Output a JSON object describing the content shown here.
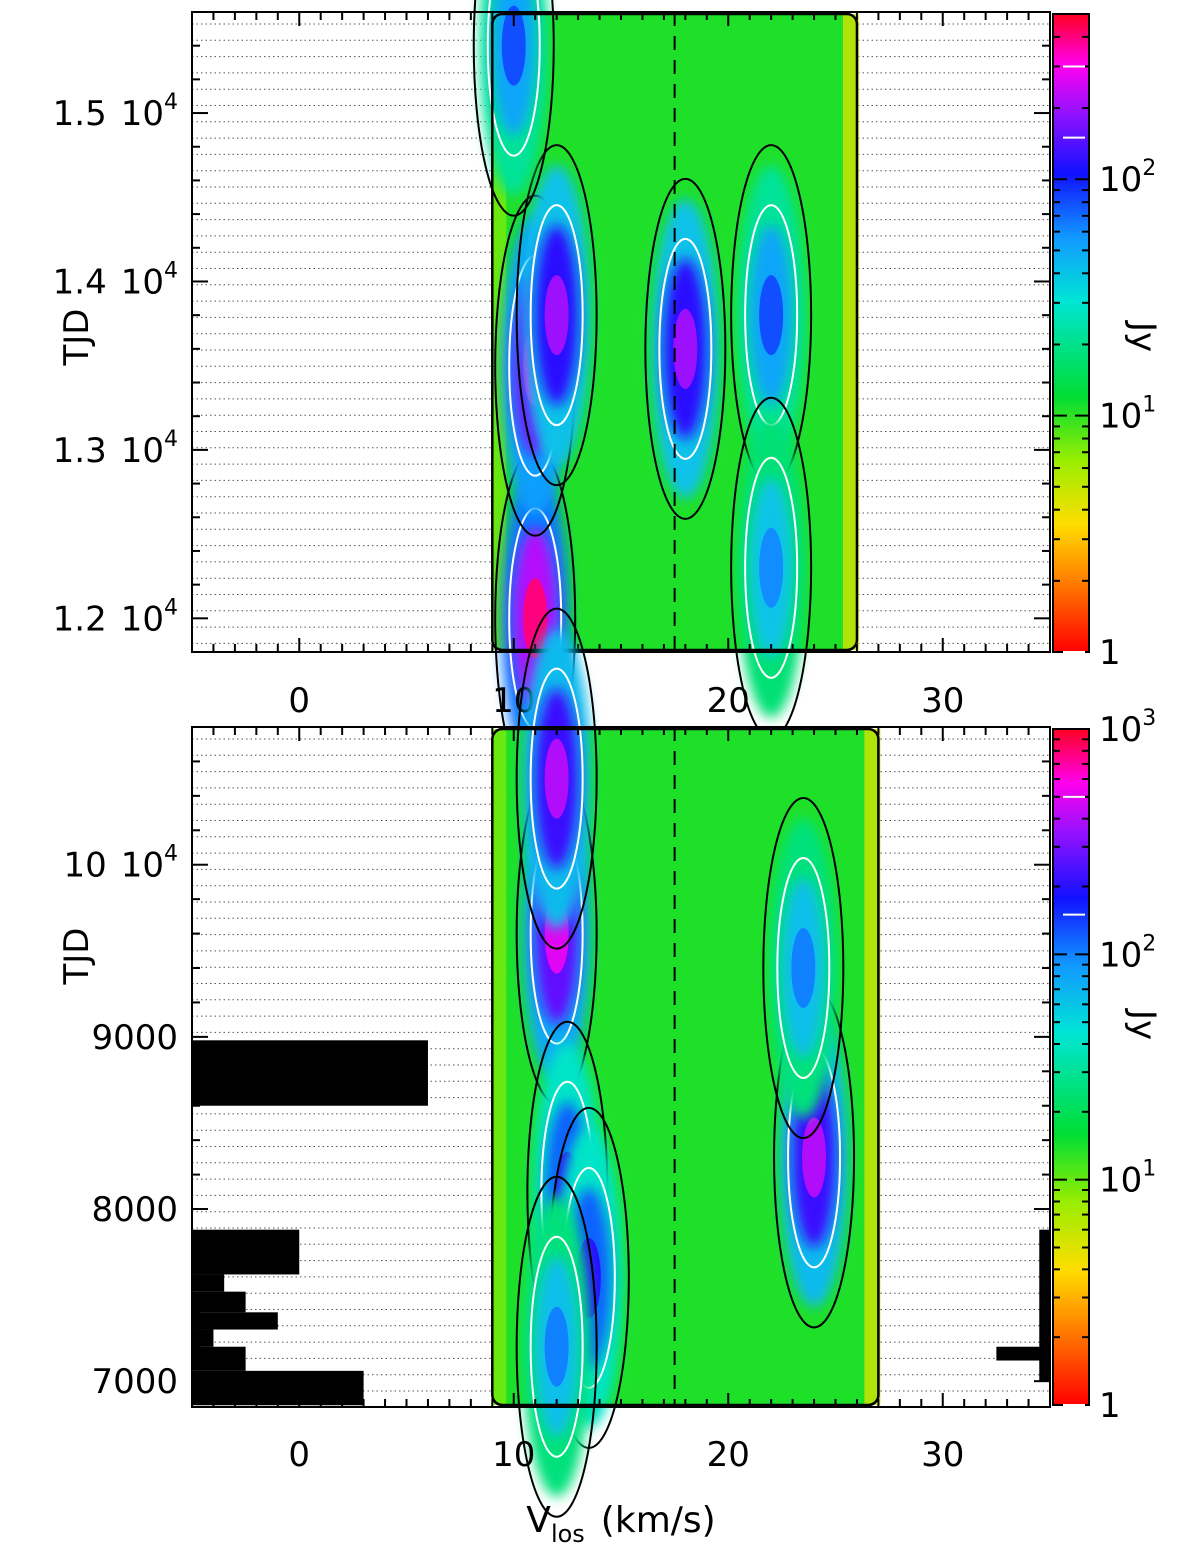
{
  "chart_data": [
    {
      "type": "heatmap",
      "panel": "top",
      "xlabel": "",
      "ylabel": "TJD",
      "xlim": [
        -5,
        35
      ],
      "ylim": [
        11800,
        15600
      ],
      "x_ticks": [
        0,
        10,
        20,
        30
      ],
      "y_ticks": [
        {
          "value": 12000,
          "mant": "1.2",
          "exp": "4"
        },
        {
          "value": 13000,
          "mant": "1.3",
          "exp": "4"
        },
        {
          "value": 14000,
          "mant": "1.4",
          "exp": "4"
        },
        {
          "value": 15000,
          "mant": "1.5",
          "exp": "4"
        }
      ],
      "colorbar": {
        "label": "Jy",
        "scale": "log",
        "range": [
          1,
          500
        ],
        "ticks": [
          {
            "value": 1,
            "text": "1",
            "exp": ""
          },
          {
            "value": 10,
            "text": "10",
            "exp": "1"
          },
          {
            "value": 100,
            "text": "10",
            "exp": "2"
          }
        ],
        "white_marks": [
          1,
          150,
          300
        ]
      },
      "emission_region": {
        "v_min": 9,
        "v_max": 26
      },
      "features": [
        {
          "v": 11,
          "t": 12000,
          "flux": 400
        },
        {
          "v": 11,
          "t": 13500,
          "flux": 300
        },
        {
          "v": 12,
          "t": 13800,
          "flux": 200
        },
        {
          "v": 18,
          "t": 13600,
          "flux": 200
        },
        {
          "v": 22,
          "t": 13800,
          "flux": 80
        },
        {
          "v": 22,
          "t": 12300,
          "flux": 60
        },
        {
          "v": 10,
          "t": 15400,
          "flux": 80
        }
      ],
      "reference_line_v": 17.5
    },
    {
      "type": "heatmap",
      "panel": "bottom",
      "xlabel": "V",
      "xlabel_sub": "los",
      "xlabel_unit": "(km/s)",
      "ylabel": "TJD",
      "xlim": [
        -5,
        35
      ],
      "ylim": [
        6850,
        10800
      ],
      "x_ticks": [
        0,
        10,
        20,
        30
      ],
      "y_ticks": [
        {
          "value": 7000,
          "mant": "7000",
          "exp": ""
        },
        {
          "value": 8000,
          "mant": "8000",
          "exp": ""
        },
        {
          "value": 9000,
          "mant": "9000",
          "exp": ""
        },
        {
          "value": 10000,
          "mant": "10",
          "exp": "4"
        }
      ],
      "colorbar": {
        "label": "Jy",
        "scale": "log",
        "range": [
          1,
          1000
        ],
        "ticks": [
          {
            "value": 1,
            "text": "1",
            "exp": ""
          },
          {
            "value": 10,
            "text": "10",
            "exp": "1"
          },
          {
            "value": 100,
            "text": "10",
            "exp": "2"
          },
          {
            "value": 1000,
            "text": "10",
            "exp": "3"
          }
        ],
        "white_marks": [
          1,
          150,
          500
        ]
      },
      "emission_region": {
        "v_min": 9,
        "v_max": 27
      },
      "features": [
        {
          "v": 12,
          "t": 9600,
          "flux": 500
        },
        {
          "v": 12,
          "t": 10500,
          "flux": 400
        },
        {
          "v": 12.5,
          "t": 8100,
          "flux": 200
        },
        {
          "v": 24,
          "t": 8300,
          "flux": 400
        },
        {
          "v": 23.5,
          "t": 9400,
          "flux": 100
        },
        {
          "v": 13.5,
          "t": 7600,
          "flux": 200
        },
        {
          "v": 12,
          "t": 7200,
          "flux": 100
        }
      ],
      "reference_line_v": 17.5
    }
  ]
}
